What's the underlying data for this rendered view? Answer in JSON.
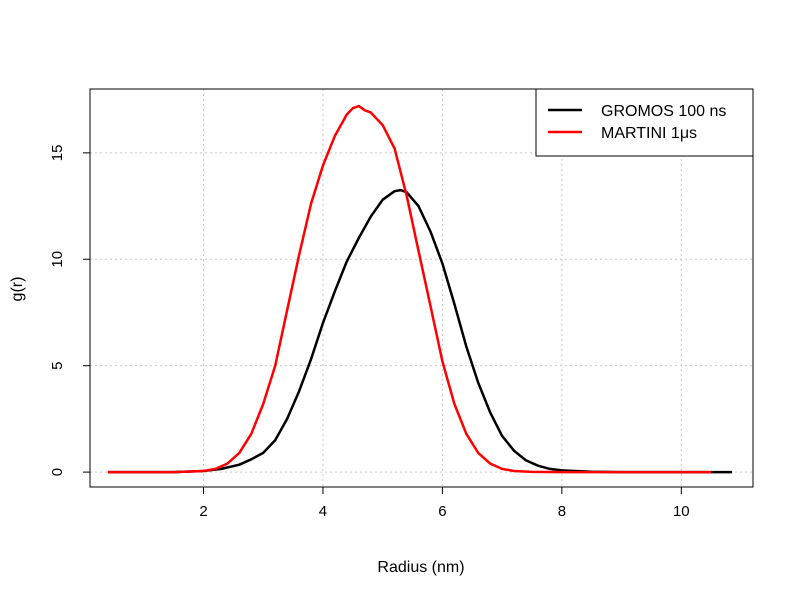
{
  "chart_data": {
    "type": "line",
    "title": "",
    "xlabel": "Radius (nm)",
    "ylabel": "g(r)",
    "xlim": [
      0.1,
      11.2
    ],
    "ylim": [
      -0.7,
      18
    ],
    "x_ticks": [
      2,
      4,
      6,
      8,
      10
    ],
    "x_tick_labels": [
      "2",
      "4",
      "6",
      "8",
      "10"
    ],
    "y_ticks": [
      0,
      5,
      10,
      15
    ],
    "y_tick_labels": [
      "0",
      "5",
      "10",
      "15"
    ],
    "grid": true,
    "legend_position": "top-right",
    "series": [
      {
        "name": "GROMOS 100 ns",
        "color": "#000000",
        "x": [
          0.4,
          1.5,
          2.0,
          2.3,
          2.6,
          2.8,
          3.0,
          3.2,
          3.4,
          3.6,
          3.8,
          4.0,
          4.2,
          4.4,
          4.6,
          4.8,
          5.0,
          5.2,
          5.3,
          5.4,
          5.6,
          5.8,
          6.0,
          6.2,
          6.4,
          6.6,
          6.8,
          7.0,
          7.2,
          7.4,
          7.6,
          7.8,
          8.0,
          8.5,
          9.0,
          10.0,
          10.85
        ],
        "y": [
          0,
          0,
          0.05,
          0.15,
          0.35,
          0.6,
          0.9,
          1.5,
          2.5,
          3.8,
          5.3,
          7.0,
          8.5,
          9.9,
          11.0,
          12.0,
          12.8,
          13.2,
          13.25,
          13.15,
          12.5,
          11.3,
          9.8,
          7.9,
          5.9,
          4.2,
          2.8,
          1.7,
          1.0,
          0.55,
          0.3,
          0.15,
          0.08,
          0.02,
          0,
          0,
          0
        ]
      },
      {
        "name": "MARTINI 1μs",
        "color": "#ff0000",
        "x": [
          0.4,
          1.5,
          2.0,
          2.2,
          2.4,
          2.6,
          2.8,
          3.0,
          3.2,
          3.4,
          3.6,
          3.8,
          4.0,
          4.2,
          4.4,
          4.5,
          4.6,
          4.7,
          4.8,
          4.9,
          5.0,
          5.2,
          5.4,
          5.6,
          5.8,
          6.0,
          6.2,
          6.4,
          6.6,
          6.8,
          7.0,
          7.2,
          7.5,
          8.0,
          9.0,
          10.5
        ],
        "y": [
          0,
          0,
          0.05,
          0.15,
          0.4,
          0.9,
          1.8,
          3.2,
          5.0,
          7.6,
          10.2,
          12.6,
          14.4,
          15.8,
          16.8,
          17.1,
          17.2,
          17.0,
          16.9,
          16.6,
          16.3,
          15.2,
          13.0,
          10.4,
          7.8,
          5.2,
          3.2,
          1.8,
          0.9,
          0.4,
          0.15,
          0.05,
          0.01,
          0,
          0,
          0
        ]
      }
    ]
  }
}
